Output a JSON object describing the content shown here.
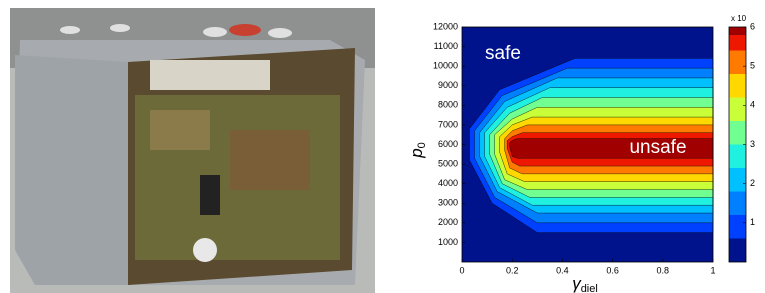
{
  "chart_data": {
    "type": "contour",
    "x_label": "γ",
    "x_label_sub": "diel",
    "y_label": "p",
    "y_label_sub": "0",
    "xlim": [
      0,
      1
    ],
    "xticks": [
      0,
      0.2,
      0.4,
      0.6,
      0.8,
      1
    ],
    "ylim": [
      0,
      12000
    ],
    "yticks": [
      1000,
      2000,
      3000,
      4000,
      5000,
      6000,
      7000,
      8000,
      9000,
      10000,
      11000,
      12000
    ],
    "background_color": "#00138c",
    "levels": [
      {
        "value": 0.6,
        "color": "#0040ff",
        "x": [
          1,
          0.45,
          0.15,
          0.03,
          0.03,
          0.12,
          0.3,
          1
        ],
        "y": [
          10400,
          10400,
          8800,
          6800,
          5200,
          3000,
          1500,
          1500
        ]
      },
      {
        "value": 1.2,
        "color": "#0080ff",
        "x": [
          1,
          0.42,
          0.16,
          0.05,
          0.05,
          0.13,
          0.3,
          1
        ],
        "y": [
          9900,
          9900,
          8500,
          6700,
          5300,
          3300,
          2000,
          2000
        ]
      },
      {
        "value": 1.8,
        "color": "#00c0ff",
        "x": [
          1,
          0.38,
          0.17,
          0.07,
          0.07,
          0.14,
          0.3,
          1
        ],
        "y": [
          9400,
          9400,
          8200,
          6600,
          5400,
          3600,
          2500,
          2500
        ]
      },
      {
        "value": 2.4,
        "color": "#20f0e0",
        "x": [
          1,
          0.35,
          0.18,
          0.09,
          0.09,
          0.15,
          0.28,
          1
        ],
        "y": [
          8900,
          8900,
          7900,
          6600,
          5400,
          3800,
          2900,
          2900
        ]
      },
      {
        "value": 3.0,
        "color": "#70ff90",
        "x": [
          1,
          0.32,
          0.19,
          0.11,
          0.11,
          0.16,
          0.27,
          1
        ],
        "y": [
          8400,
          8400,
          7600,
          6500,
          5500,
          4000,
          3300,
          3300
        ]
      },
      {
        "value": 3.6,
        "color": "#c8ff38",
        "x": [
          1,
          0.3,
          0.2,
          0.13,
          0.13,
          0.17,
          0.26,
          1
        ],
        "y": [
          7900,
          7900,
          7300,
          6500,
          5500,
          4200,
          3700,
          3700
        ]
      },
      {
        "value": 4.2,
        "color": "#ffd800",
        "x": [
          1,
          0.28,
          0.2,
          0.15,
          0.15,
          0.18,
          0.25,
          1
        ],
        "y": [
          7400,
          7400,
          7000,
          6400,
          5600,
          4500,
          4100,
          4100
        ]
      },
      {
        "value": 4.8,
        "color": "#ff7a00",
        "x": [
          1,
          0.26,
          0.2,
          0.17,
          0.17,
          0.19,
          0.24,
          1
        ],
        "y": [
          7000,
          7000,
          6700,
          6300,
          5700,
          4800,
          4500,
          4500
        ]
      },
      {
        "value": 5.4,
        "color": "#ee1800",
        "x": [
          1,
          0.24,
          0.2,
          0.18,
          0.18,
          0.2,
          0.23,
          1
        ],
        "y": [
          6600,
          6600,
          6400,
          6200,
          5800,
          5100,
          4900,
          4900
        ]
      },
      {
        "value": 5.8,
        "color": "#a00000",
        "x": [
          1,
          0.22,
          0.2,
          0.19,
          0.19,
          0.2,
          0.22,
          1
        ],
        "y": [
          6300,
          6300,
          6200,
          6100,
          5900,
          5400,
          5300,
          5300
        ]
      }
    ],
    "colorbar_lim": [
      0,
      6
    ],
    "colorbar_ticks": [
      1,
      2,
      3,
      4,
      5,
      6
    ],
    "colorbar_label": "x 10",
    "annotations": [
      "safe",
      "unsafe"
    ]
  }
}
